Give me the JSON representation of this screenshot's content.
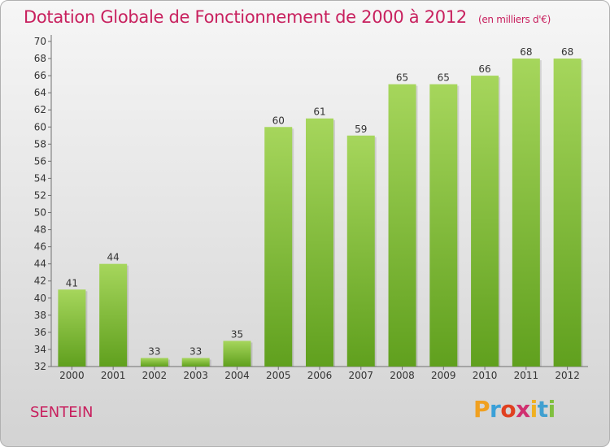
{
  "title": "Dotation Globale de Fonctionnement de 2000 à 2012",
  "unit": "(en milliers d'€)",
  "place": "SENTEIN",
  "logo": {
    "text": "Proxiti",
    "colors": [
      "#f0a020",
      "#3aa0d8",
      "#e04020",
      "#d03070",
      "#f0b020",
      "#40a0d0",
      "#80c040"
    ]
  },
  "colors": {
    "title": "#c8205e",
    "bar_light": "#a4d45a",
    "bar_dark": "#62a020",
    "axis": "#707070"
  },
  "chart_data": {
    "type": "bar",
    "title": "Dotation Globale de Fonctionnement de 2000 à 2012",
    "subtitle": "(en milliers d'€)",
    "xlabel": "",
    "ylabel": "",
    "categories": [
      "2000",
      "2001",
      "2002",
      "2003",
      "2004",
      "2005",
      "2006",
      "2007",
      "2008",
      "2009",
      "2010",
      "2011",
      "2012"
    ],
    "values": [
      41,
      44,
      33,
      33,
      35,
      60,
      61,
      59,
      65,
      65,
      66,
      68,
      68
    ],
    "ylim": [
      32,
      70
    ],
    "yticks": [
      32,
      34,
      36,
      38,
      40,
      42,
      44,
      46,
      48,
      50,
      52,
      54,
      56,
      58,
      60,
      62,
      64,
      66,
      68,
      70
    ],
    "grid": false,
    "data_labels": true
  }
}
